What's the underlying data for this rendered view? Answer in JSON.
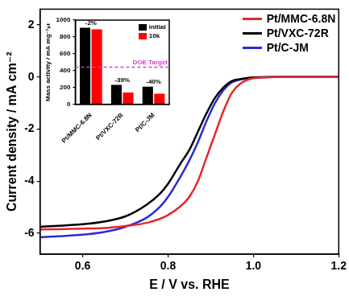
{
  "chart_data": [
    {
      "type": "line",
      "x_label": "E / V vs. RHE",
      "y_label": "Current density / mA cm⁻²",
      "x": [
        0.5,
        0.6,
        0.65,
        0.7,
        0.75,
        0.78,
        0.8,
        0.83,
        0.85,
        0.87,
        0.89,
        0.91,
        0.93,
        0.95,
        0.97,
        1.0,
        1.05,
        1.1,
        1.2
      ],
      "series": [
        {
          "name": "Pt/MMC-6.8N",
          "color": "#e8262a",
          "values": [
            -5.85,
            -5.82,
            -5.8,
            -5.72,
            -5.6,
            -5.45,
            -5.3,
            -4.95,
            -4.6,
            -4.0,
            -3.1,
            -2.2,
            -1.3,
            -0.6,
            -0.25,
            -0.05,
            0,
            0,
            0
          ]
        },
        {
          "name": "Pt/VXC-72R",
          "color": "#000000",
          "values": [
            -5.75,
            -5.65,
            -5.55,
            -5.35,
            -4.9,
            -4.5,
            -4.1,
            -3.3,
            -2.8,
            -2.1,
            -1.4,
            -0.8,
            -0.4,
            -0.15,
            -0.08,
            -0.02,
            0,
            0,
            0
          ]
        },
        {
          "name": "Pt/C-JM",
          "color": "#2b2bd6",
          "values": [
            -6.15,
            -6.05,
            -5.95,
            -5.75,
            -5.4,
            -5.0,
            -4.6,
            -3.8,
            -3.2,
            -2.5,
            -1.7,
            -1.0,
            -0.5,
            -0.2,
            -0.1,
            -0.02,
            0,
            0,
            0
          ]
        }
      ],
      "xlim": [
        0.5,
        1.2
      ],
      "xticks": [
        0.6,
        0.8,
        {
          "value": 1,
          "label": "1.0"
        },
        1.2
      ],
      "ylim": [
        -6.8,
        2.6
      ],
      "yticks": [
        -6,
        -4,
        -2,
        0,
        2
      ],
      "grid": false,
      "legend": "top-right"
    },
    {
      "type": "bar",
      "y_label": "Mass activity / mA mg⁻¹ₚₜ",
      "categories": [
        "Pt/MMC-6.8N",
        "Pt/VXC-72R",
        "Pt/C-JM"
      ],
      "series": [
        {
          "name": "initial",
          "color": "#000000",
          "values": [
            910,
            230,
            210
          ]
        },
        {
          "name": "10k",
          "color": "#ff0000",
          "values": [
            890,
            140,
            125
          ]
        }
      ],
      "ylim": [
        0,
        1000
      ],
      "yticks": [
        0,
        200,
        400,
        600,
        800,
        1000
      ],
      "grid": false,
      "legend": "top-right",
      "annotations": [
        {
          "category": "Pt/MMC-6.8N",
          "text": "-2%"
        },
        {
          "category": "Pt/VXC-72R",
          "text": "-39%"
        },
        {
          "category": "Pt/C-JM",
          "text": "-40%"
        }
      ],
      "target": {
        "value": 440,
        "label": "DOE Target",
        "color": "#d040d0"
      }
    }
  ]
}
